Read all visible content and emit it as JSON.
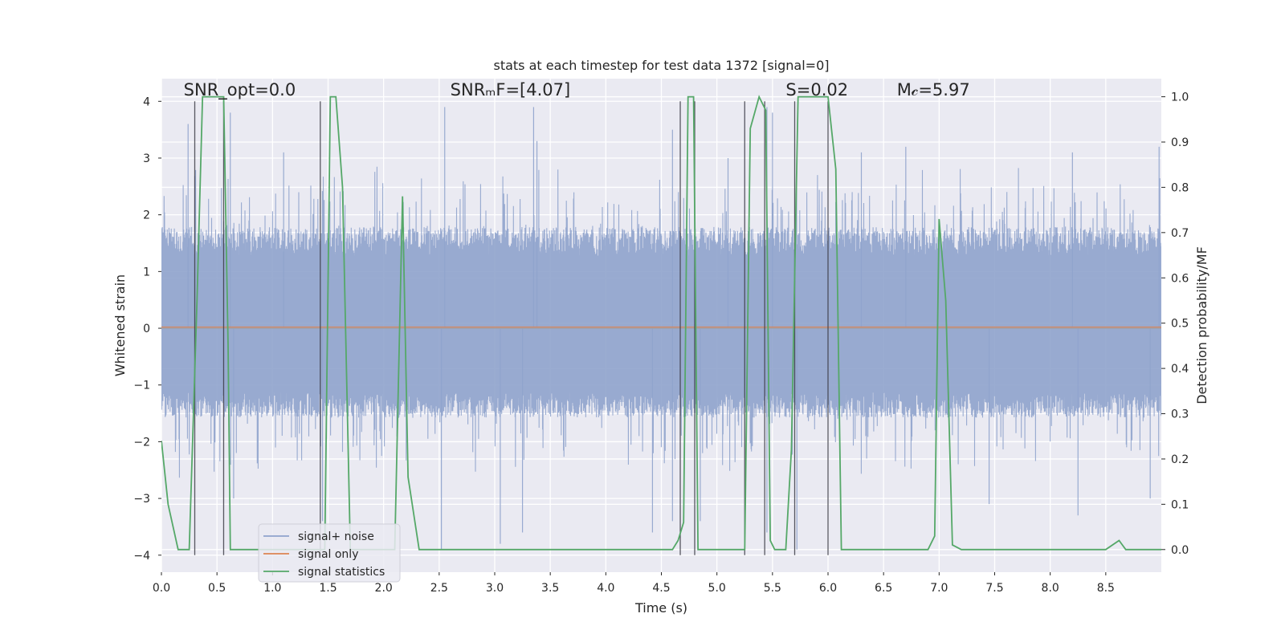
{
  "chart_data": {
    "type": "line",
    "title": "stats at each timestep for test data 1372 [signal=0]",
    "xlabel": "Time (s)",
    "ylabel": "Whitened strain",
    "y2label": "Detection probability/MF",
    "xlim": [
      0.0,
      9.0
    ],
    "ylim": [
      -4.3,
      4.4
    ],
    "y2lim": [
      -0.05,
      1.04
    ],
    "xticks": [
      0.0,
      0.5,
      1.0,
      1.5,
      2.0,
      2.5,
      3.0,
      3.5,
      4.0,
      4.5,
      5.0,
      5.5,
      6.0,
      6.5,
      7.0,
      7.5,
      8.0,
      8.5
    ],
    "xtick_labels": [
      "0.0",
      "0.5",
      "1.0",
      "1.5",
      "2.0",
      "2.5",
      "3.0",
      "3.5",
      "4.0",
      "4.5",
      "5.0",
      "5.5",
      "6.0",
      "6.5",
      "7.0",
      "7.5",
      "8.0",
      "8.5"
    ],
    "yticks": [
      4,
      3,
      2,
      1,
      0,
      -1,
      -2,
      -3,
      -4
    ],
    "ytick_labels": [
      "4",
      "3",
      "2",
      "1",
      "0",
      "−1",
      "−2",
      "−3",
      "−4"
    ],
    "y2ticks": [
      1.0,
      0.9,
      0.8,
      0.7,
      0.6,
      0.5,
      0.4,
      0.3,
      0.2,
      0.1,
      0.0
    ],
    "y2tick_labels": [
      "1.0",
      "0.9",
      "0.8",
      "0.7",
      "0.6",
      "0.5",
      "0.4",
      "0.3",
      "0.2",
      "0.1",
      "0.0"
    ],
    "grid": true,
    "legend_position": "lower-left",
    "annotations": [
      {
        "id": "snr-opt",
        "text": "SNR_opt=0.0",
        "x": 0.2,
        "y": 4.1
      },
      {
        "id": "snr-mf",
        "text": "SNRₘF=[4.07]",
        "x": 2.6,
        "y": 4.1
      },
      {
        "id": "s-stat",
        "text": "S=0.02",
        "x": 5.62,
        "y": 4.1
      },
      {
        "id": "mc",
        "text": "M𝒸=5.97",
        "x": 6.62,
        "y": 4.1
      }
    ],
    "series": [
      {
        "name": "signal+ noise",
        "color": "#8fa3cc",
        "axis": "left",
        "style": "dense-noise",
        "envelope": {
          "core_upper": 1.7,
          "core_lower": -1.5,
          "peak_max": 4.0,
          "peak_min": -4.0
        },
        "notable_peaks": [
          [
            0.24,
            3.6
          ],
          [
            0.62,
            3.8
          ],
          [
            1.1,
            3.1
          ],
          [
            2.55,
            3.9
          ],
          [
            3.35,
            3.9
          ],
          [
            3.38,
            3.3
          ],
          [
            4.6,
            3.5
          ],
          [
            5.1,
            3.0
          ],
          [
            5.45,
            3.9
          ],
          [
            5.5,
            3.8
          ],
          [
            6.3,
            3.1
          ],
          [
            6.7,
            3.2
          ],
          [
            8.2,
            3.1
          ],
          [
            8.98,
            3.2
          ],
          [
            0.65,
            -3.0
          ],
          [
            1.45,
            -3.4
          ],
          [
            2.52,
            -3.9
          ],
          [
            3.05,
            -3.8
          ],
          [
            3.25,
            -3.6
          ],
          [
            4.42,
            -3.6
          ],
          [
            4.6,
            -3.4
          ],
          [
            4.85,
            -3.4
          ],
          [
            5.45,
            -3.6
          ],
          [
            5.72,
            -3.9
          ],
          [
            7.45,
            -3.1
          ],
          [
            8.25,
            -3.3
          ],
          [
            8.9,
            -3.0
          ]
        ]
      },
      {
        "name": "signal only",
        "color": "#dd8452",
        "axis": "left",
        "x": [
          0.0,
          9.0
        ],
        "y": [
          0.02,
          0.02
        ]
      },
      {
        "name": "signal statistics",
        "color": "#55a868",
        "axis": "right",
        "x": [
          0.0,
          0.06,
          0.15,
          0.25,
          0.32,
          0.37,
          0.45,
          0.56,
          0.6,
          0.62,
          0.7,
          0.85,
          1.0,
          1.2,
          1.42,
          1.47,
          1.52,
          1.57,
          1.63,
          1.7,
          2.1,
          2.17,
          2.22,
          2.32,
          2.5,
          3.0,
          4.0,
          4.6,
          4.65,
          4.7,
          4.74,
          4.79,
          4.83,
          4.87,
          5.0,
          5.25,
          5.3,
          5.38,
          5.44,
          5.48,
          5.52,
          5.62,
          5.67,
          5.73,
          5.8,
          6.0,
          6.07,
          6.12,
          6.2,
          6.5,
          6.9,
          6.96,
          7.0,
          7.06,
          7.12,
          7.2,
          7.5,
          8.0,
          8.5,
          8.62,
          8.68,
          9.0
        ],
        "y": [
          0.24,
          0.1,
          0.0,
          0.0,
          0.55,
          1.0,
          1.0,
          1.0,
          0.45,
          0.0,
          0.0,
          0.0,
          0.0,
          0.0,
          0.0,
          0.0,
          1.0,
          1.0,
          0.8,
          0.0,
          0.0,
          0.78,
          0.16,
          0.0,
          0.0,
          0.0,
          0.0,
          0.0,
          0.02,
          0.06,
          1.0,
          1.0,
          0.0,
          0.0,
          0.0,
          0.0,
          0.93,
          1.0,
          0.97,
          0.02,
          0.0,
          0.0,
          0.22,
          1.0,
          1.0,
          1.0,
          0.84,
          0.0,
          0.0,
          0.0,
          0.0,
          0.03,
          0.73,
          0.55,
          0.01,
          0.0,
          0.0,
          0.0,
          0.0,
          0.02,
          0.0,
          0.0
        ]
      }
    ],
    "vertical_lines": [
      0.3,
      0.56,
      1.43,
      4.67,
      4.8,
      5.25,
      5.43,
      5.7,
      6.0
    ]
  }
}
